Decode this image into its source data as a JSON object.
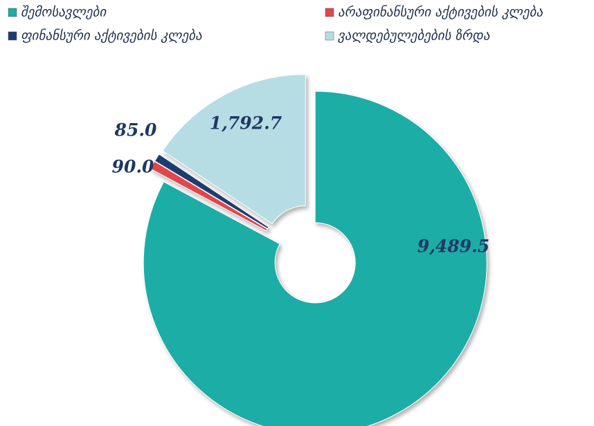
{
  "chart_data": {
    "type": "donut",
    "categories": [
      "შემოსავლები",
      "არაფინანსური აქტივების კლება",
      "ფინანსური აქტივების კლება",
      "ვალდებულებების ზრდა"
    ],
    "values": [
      9489.5,
      90.0,
      85.0,
      1792.7
    ],
    "value_labels": [
      "9,489.5",
      "90.0",
      "85.0",
      "1,792.7"
    ],
    "colors": [
      "#1aada6",
      "#e0474c",
      "#1f3c6e",
      "#b7dde4"
    ]
  }
}
